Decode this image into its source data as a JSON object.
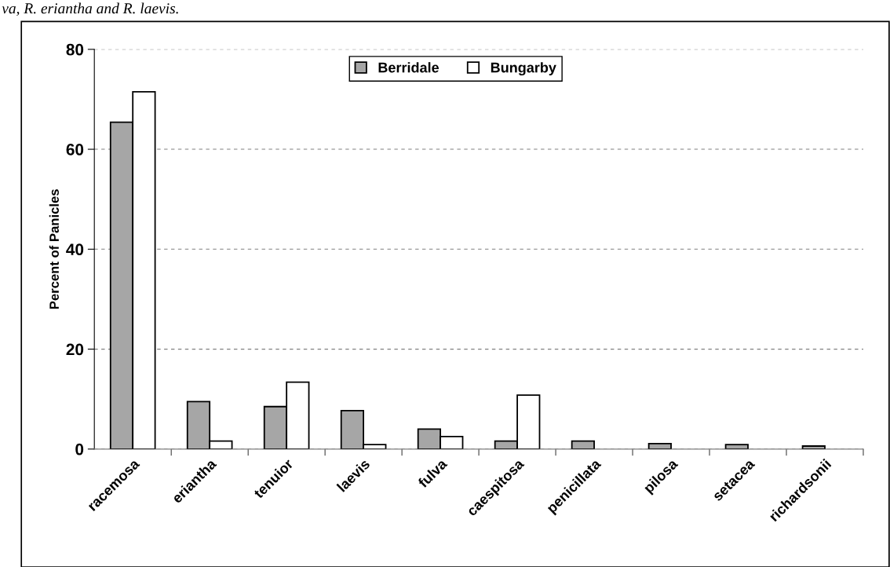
{
  "chart_data": {
    "type": "bar",
    "annotations": [
      "va, R. eriantha and R. laevis."
    ],
    "ylabel": "Percent of Panicles",
    "categories": [
      "racemosa",
      "eriantha",
      "tenuior",
      "laevis",
      "fulva",
      "caespitosa",
      "penicillata",
      "pilosa",
      "setacea",
      "richardsonii"
    ],
    "series": [
      {
        "name": "Berridale",
        "color": "#a6a6a6",
        "values": [
          65.4,
          9.5,
          8.5,
          7.7,
          4.0,
          1.6,
          1.6,
          1.1,
          0.9,
          0.6
        ]
      },
      {
        "name": "Bungarby",
        "color": "#ffffff",
        "values": [
          71.5,
          1.6,
          13.4,
          0.9,
          2.5,
          10.8,
          null,
          null,
          null,
          null
        ]
      }
    ],
    "ylim": [
      0,
      80
    ],
    "yticks": [
      0,
      20,
      40,
      60,
      80
    ],
    "grid": "y",
    "legend": "top"
  }
}
